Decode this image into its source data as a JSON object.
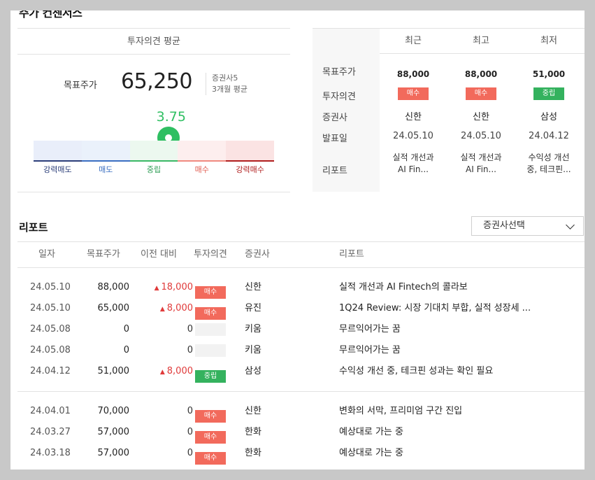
{
  "section_title": "주가 컨센서스",
  "left": {
    "header": "투자의견 평균",
    "target_label": "목표주가",
    "target_value": "65,250",
    "brokers": "증권사5",
    "period": "3개월 평균",
    "score": "3.75",
    "score_fraction": 0.56,
    "scale": [
      {
        "label": "강력매도",
        "bg": "#e9eefa",
        "line": "#2c3f7a",
        "color": "#2c3f7a"
      },
      {
        "label": "매도",
        "bg": "#eaf1fb",
        "line": "#3b6fc2",
        "color": "#3b6fc2"
      },
      {
        "label": "중립",
        "bg": "#ecf8ef",
        "line": "#3ab865",
        "color": "#2f9e56"
      },
      {
        "label": "매수",
        "bg": "#fdeeee",
        "line": "#f08a80",
        "color": "#e05a4e"
      },
      {
        "label": "강력매수",
        "bg": "#fbe3e3",
        "line": "#b01e1e",
        "color": "#b01e1e"
      }
    ]
  },
  "right": {
    "columns": [
      "최근",
      "최고",
      "최저"
    ],
    "row_labels": [
      "목표주가",
      "투자의견",
      "증권사",
      "발표일",
      "리포트"
    ],
    "cols": [
      {
        "price": "88,000",
        "opinion": "매수",
        "opinion_type": "buy",
        "broker": "신한",
        "date": "24.05.10",
        "report_l1": "실적 개선과",
        "report_l2": "AI Fin..."
      },
      {
        "price": "88,000",
        "opinion": "매수",
        "opinion_type": "buy",
        "broker": "신한",
        "date": "24.05.10",
        "report_l1": "실적 개선과",
        "report_l2": "AI Fin..."
      },
      {
        "price": "51,000",
        "opinion": "중립",
        "opinion_type": "neutral",
        "broker": "삼성",
        "date": "24.04.12",
        "report_l1": "수익성 개선",
        "report_l2": "중, 테크핀..."
      }
    ]
  },
  "reports": {
    "title": "리포트",
    "select_label": "증권사선택",
    "headers": [
      "일자",
      "목표주가",
      "이전 대비",
      "투자의견",
      "증권사",
      "리포트"
    ],
    "rows": [
      {
        "date": "24.05.10",
        "price": "88,000",
        "diff": "18,000",
        "diff_dir": "up",
        "opinion": "매수",
        "opinion_type": "buy",
        "broker": "신한",
        "report": "실적 개선과 AI Fintech의 콜라보"
      },
      {
        "date": "24.05.10",
        "price": "65,000",
        "diff": "8,000",
        "diff_dir": "up",
        "opinion": "매수",
        "opinion_type": "buy",
        "broker": "유진",
        "report": "1Q24 Review: 시장 기대치 부합, 실적 성장세 ..."
      },
      {
        "date": "24.05.08",
        "price": "0",
        "diff": "0",
        "diff_dir": "none",
        "opinion": "",
        "opinion_type": "empty",
        "broker": "키움",
        "report": "무르익어가는 꿈"
      },
      {
        "date": "24.05.08",
        "price": "0",
        "diff": "0",
        "diff_dir": "none",
        "opinion": "",
        "opinion_type": "empty",
        "broker": "키움",
        "report": "무르익어가는 꿈"
      },
      {
        "date": "24.04.12",
        "price": "51,000",
        "diff": "8,000",
        "diff_dir": "up",
        "opinion": "중립",
        "opinion_type": "neutral",
        "broker": "삼성",
        "report": "수익성 개선 중, 테크핀 성과는 확인 필요"
      },
      {
        "date": "24.04.01",
        "price": "70,000",
        "diff": "0",
        "diff_dir": "none",
        "opinion": "매수",
        "opinion_type": "buy",
        "broker": "신한",
        "report": "변화의 서막, 프리미엄 구간 진입"
      },
      {
        "date": "24.03.27",
        "price": "57,000",
        "diff": "0",
        "diff_dir": "none",
        "opinion": "매수",
        "opinion_type": "buy",
        "broker": "한화",
        "report": "예상대로 가는 중"
      },
      {
        "date": "24.03.18",
        "price": "57,000",
        "diff": "0",
        "diff_dir": "none",
        "opinion": "매수",
        "opinion_type": "buy",
        "broker": "한화",
        "report": "예상대로 가는 중"
      }
    ]
  }
}
